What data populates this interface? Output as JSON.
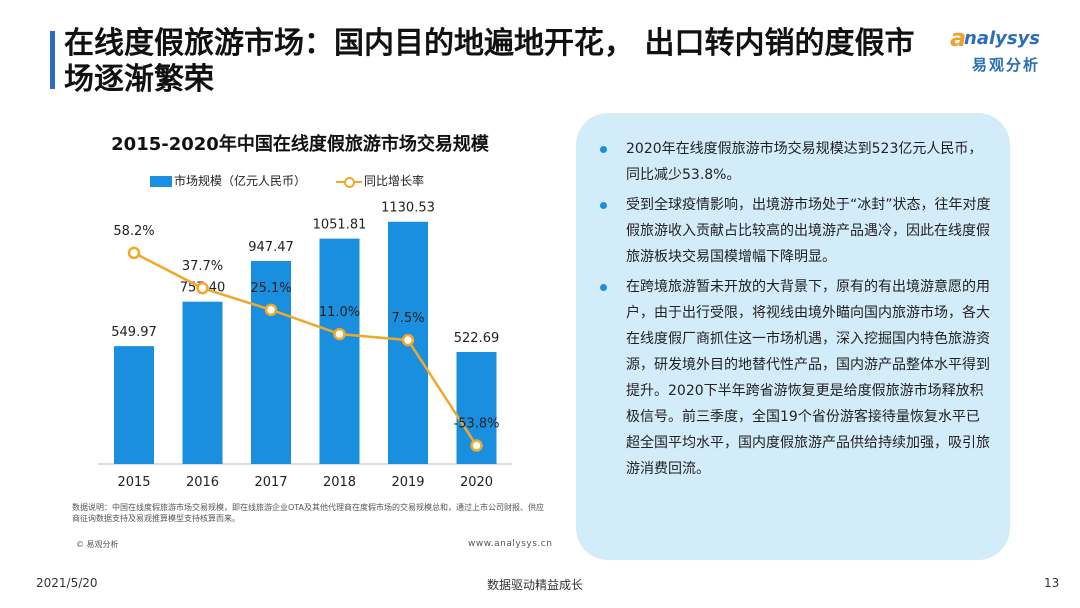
{
  "title": "在线度假旅游市场：国内目的地遍地开花， 出口转内销的度假市场逐渐繁荣",
  "logo": {
    "en": "nalysys",
    "a": "a",
    "cn": "易观分析"
  },
  "chart_data": {
    "type": "bar+line",
    "title": "2015-2020年中国在线度假旅游市场交易规模",
    "categories": [
      "2015",
      "2016",
      "2017",
      "2018",
      "2019",
      "2020"
    ],
    "series": [
      {
        "name": "市场规模（亿元人民币）",
        "type": "bar",
        "values": [
          549.97,
          757.4,
          947.47,
          1051.81,
          1130.53,
          522.69
        ],
        "labels": [
          "549.97",
          "757.40",
          "947.47",
          "1051.81",
          "1130.53",
          "522.69"
        ],
        "color": "#1a8fe0"
      },
      {
        "name": "同比增长率",
        "type": "line",
        "values": [
          58.2,
          37.7,
          25.1,
          11.0,
          7.5,
          -53.8
        ],
        "labels": [
          "58.2%",
          "37.7%",
          "25.1%",
          "11.0%",
          "7.5%",
          "-53.8%"
        ],
        "color": "#f0a82a"
      }
    ],
    "bar_ylim": [
      0,
      1400
    ],
    "line_ylim": [
      -80,
      80
    ],
    "grid": false,
    "legend_position": "top"
  },
  "note": "数据说明：中国在线度假旅游市场交易规模，即在线旅游企业OTA及其他代理商在度假市场的交易规模总和，通过上市公司财报、供应商征询数据支持及易观推算模型支持核算而来。",
  "source_left": "© 易观分析",
  "source_right": "www.analysys.cn",
  "bullets": [
    "2020年在线度假旅游市场交易规模达到523亿元人民币，同比减少53.8%。",
    "受到全球疫情影响，出境游市场处于“冰封”状态，往年对度假旅游收入贡献占比较高的出境游产品遇冷，因此在线度假旅游板块交易国模增幅下降明显。",
    "在跨境旅游暂未开放的大背景下，原有的有出境游意愿的用户，由于出行受限，将视线由境外瞄向国内旅游市场，各大在线度假厂商抓住这一市场机遇，深入挖掘国内特色旅游资源，研发境外目的地替代性产品，国内游产品整体水平得到提升。2020下半年跨省游恢复更是给度假旅游市场释放积极信号。前三季度，全国19个省份游客接待量恢复水平已超全国平均水平，国内度假旅游产品供给持续加强，吸引旅游消费回流。"
  ],
  "footer": {
    "date": "2021/5/20",
    "slogan": "数据驱动精益成长",
    "page": "13"
  }
}
